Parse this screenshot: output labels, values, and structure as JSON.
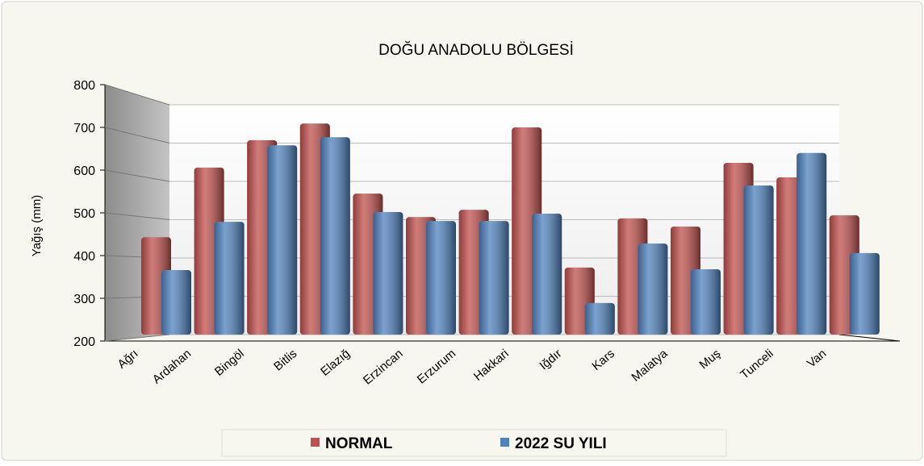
{
  "chart_data": {
    "type": "bar",
    "title": "DOĞU ANADOLU  BÖLGESİ",
    "y_label": "Yağış (mm)",
    "categories": [
      "Ağrı",
      "Ardahan",
      "Bingöl",
      "Bitlis",
      "Elazığ",
      "Erzincan",
      "Erzurum",
      "Hakkari",
      "Iğdır",
      "Kars",
      "Malatya",
      "Muş",
      "Tunceli",
      "Van"
    ],
    "series": [
      {
        "name": "NORMAL",
        "color": "#c0504d",
        "values": [
          443,
          606,
          670,
          709,
          545,
          490,
          507,
          700,
          372,
          487,
          468,
          617,
          583,
          494
        ]
      },
      {
        "name": "2022 SU YILI",
        "color": "#4f81bd",
        "values": [
          366,
          479,
          658,
          677,
          502,
          481,
          481,
          498,
          289,
          428,
          368,
          564,
          640,
          406
        ]
      }
    ],
    "ylim": [
      200,
      800
    ],
    "yticks": [
      200,
      300,
      400,
      500,
      600,
      700,
      800
    ],
    "grid": true,
    "legend": "bottom"
  }
}
